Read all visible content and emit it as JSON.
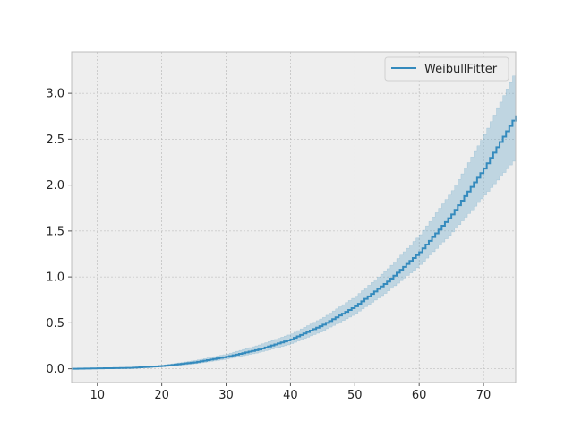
{
  "chart_data": {
    "type": "line",
    "title": "",
    "xlabel": "",
    "ylabel": "",
    "xlim": [
      6,
      75
    ],
    "ylim": [
      -0.15,
      3.45
    ],
    "x_ticks": [
      10,
      20,
      30,
      40,
      50,
      60,
      70
    ],
    "y_ticks": [
      0.0,
      0.5,
      1.0,
      1.5,
      2.0,
      2.5,
      3.0
    ],
    "x_tick_labels": [
      "10",
      "20",
      "30",
      "40",
      "50",
      "60",
      "70"
    ],
    "y_tick_labels": [
      "0.0",
      "0.5",
      "1.0",
      "1.5",
      "2.0",
      "2.5",
      "3.0"
    ],
    "grid": true,
    "legend_position": "top-right",
    "series": [
      {
        "name": "WeibullFitter",
        "color": "#348ABD",
        "band_color": "#348ABD",
        "x": [
          6,
          15,
          20,
          25,
          30,
          35,
          40,
          45,
          50,
          55,
          60,
          65,
          70,
          75
        ],
        "y": [
          0.0,
          0.01,
          0.03,
          0.07,
          0.13,
          0.21,
          0.32,
          0.48,
          0.68,
          0.95,
          1.27,
          1.68,
          2.18,
          2.76
        ],
        "lower": [
          0.0,
          0.005,
          0.02,
          0.05,
          0.1,
          0.17,
          0.26,
          0.4,
          0.58,
          0.82,
          1.1,
          1.45,
          1.85,
          2.26
        ],
        "upper": [
          0.0,
          0.015,
          0.04,
          0.09,
          0.16,
          0.26,
          0.38,
          0.56,
          0.79,
          1.09,
          1.46,
          1.94,
          2.55,
          3.26
        ]
      }
    ]
  }
}
